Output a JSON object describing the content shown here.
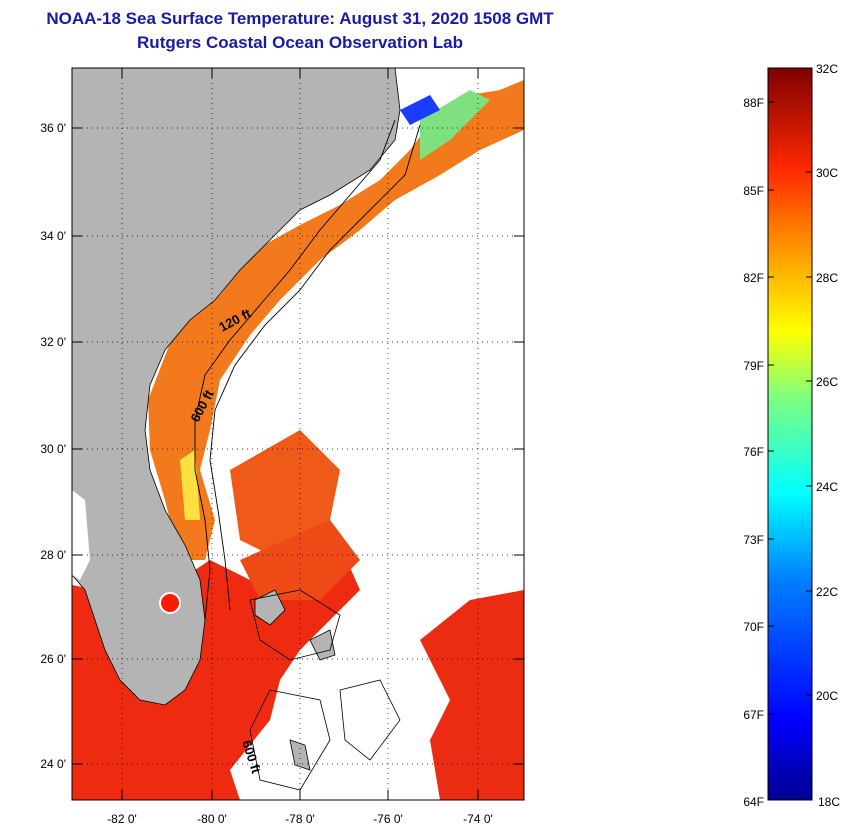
{
  "header": {
    "title": "NOAA-18 Sea Surface Temperature:  August 31, 2020 1508 GMT",
    "subtitle": "Rutgers Coastal Ocean Observation Lab"
  },
  "map": {
    "lat_labels": [
      "36 0'",
      "34 0'",
      "32 0'",
      "30 0'",
      "28 0'",
      "26 0'",
      "24 0'"
    ],
    "lon_labels": [
      "-82 0'",
      "-80 0'",
      "-78 0'",
      "-76 0'",
      "-74 0'"
    ],
    "contour_labels": [
      "120 ft",
      "600 ft",
      "600 ft"
    ],
    "land_color": "#b4b4b4",
    "cloud_color": "#ffffff"
  },
  "colorbar": {
    "celsius_labels": [
      "32C",
      "30C",
      "28C",
      "26C",
      "24C",
      "22C",
      "20C",
      "18C"
    ],
    "fahrenheit_labels": [
      "88F",
      "85F",
      "82F",
      "79F",
      "76F",
      "73F",
      "70F",
      "67F",
      "64F"
    ],
    "colors": [
      "#00008f",
      "#0000ff",
      "#007fff",
      "#00ffff",
      "#7fff7f",
      "#ffff00",
      "#ff7f00",
      "#ff0000",
      "#7f0000"
    ]
  }
}
